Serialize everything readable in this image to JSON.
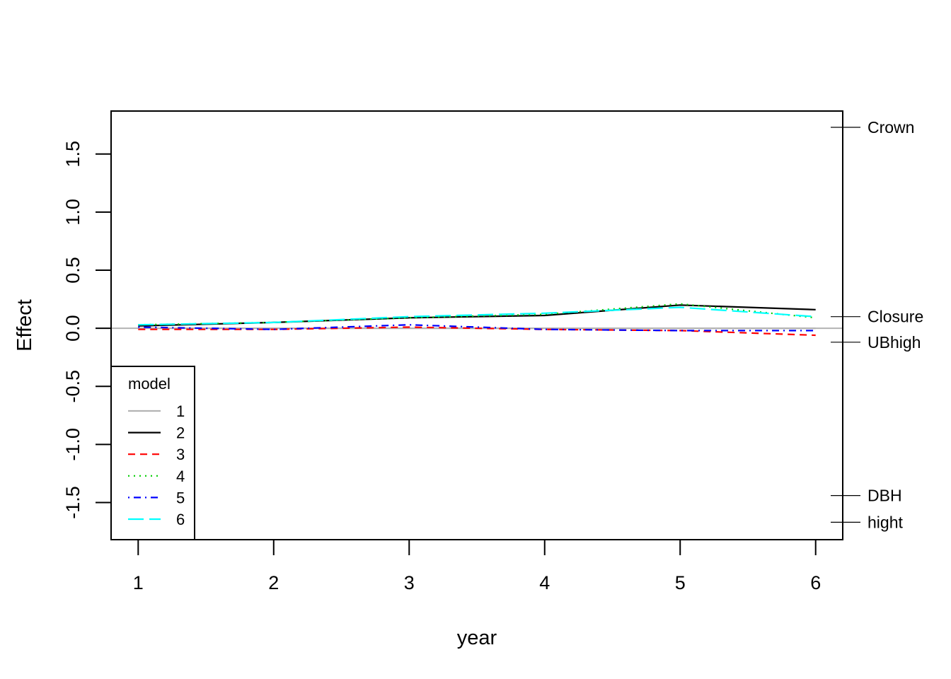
{
  "chart_data": {
    "type": "line",
    "title": "",
    "xlabel": "year",
    "ylabel": "Effect",
    "x": [
      1,
      2,
      3,
      4,
      5,
      6
    ],
    "xlim": [
      0.8,
      6.2
    ],
    "ylim": [
      -1.82,
      1.87
    ],
    "yticks": [
      "-1.5",
      "-1.0",
      "-0.5",
      "0.0",
      "0.5",
      "1.0",
      "1.5"
    ],
    "ytick_values": [
      -1.5,
      -1.0,
      -0.5,
      0.0,
      0.5,
      1.0,
      1.5
    ],
    "grid": false,
    "reference_line": {
      "y": 0.0,
      "color": "#b3b3b3"
    },
    "series": [
      {
        "name": "1",
        "color": "#b3b3b3",
        "dash": "solid",
        "values": [
          0.0,
          0.0,
          0.0,
          0.0,
          0.0,
          0.0
        ]
      },
      {
        "name": "2",
        "color": "#000000",
        "dash": "solid",
        "values": [
          0.02,
          0.05,
          0.09,
          0.11,
          0.2,
          0.16
        ]
      },
      {
        "name": "3",
        "color": "#ff0000",
        "dash": "dashed",
        "values": [
          -0.01,
          -0.01,
          0.01,
          -0.01,
          -0.02,
          -0.06
        ]
      },
      {
        "name": "4",
        "color": "#00cd00",
        "dash": "dotted",
        "values": [
          0.03,
          0.05,
          0.09,
          0.12,
          0.21,
          0.09
        ]
      },
      {
        "name": "5",
        "color": "#0000ff",
        "dash": "dotdash",
        "values": [
          0.01,
          -0.01,
          0.03,
          -0.01,
          -0.02,
          -0.02
        ]
      },
      {
        "name": "6",
        "color": "#00ffff",
        "dash": "longdash",
        "values": [
          0.03,
          0.05,
          0.1,
          0.13,
          0.18,
          0.1
        ]
      }
    ],
    "legend": {
      "title": "model",
      "position": "bottom-left"
    },
    "side_labels": [
      {
        "label": "Crown",
        "y": 1.73
      },
      {
        "label": "Closure",
        "y": 0.1
      },
      {
        "label": "UBhigh",
        "y": -0.12
      },
      {
        "label": "DBH",
        "y": -1.44
      },
      {
        "label": "hight",
        "y": -1.67
      }
    ]
  }
}
